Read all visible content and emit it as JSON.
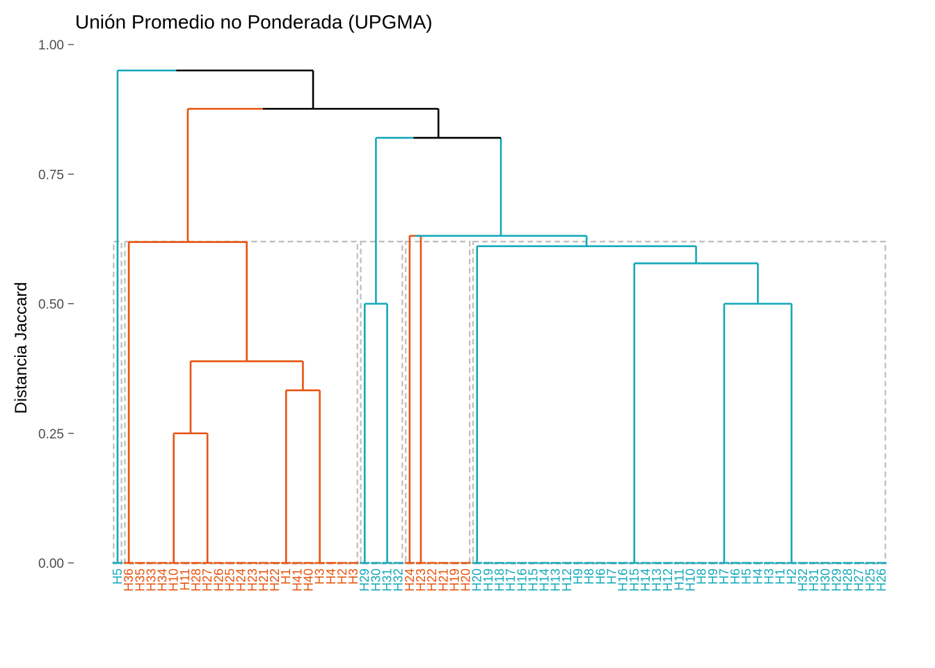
{
  "chart_data": {
    "type": "dendrogram",
    "title": "Unión Promedio no Ponderada (UPGMA)",
    "ylabel": "Distancia Jaccard",
    "ylim": [
      0,
      1
    ],
    "yticks": [
      "0.00",
      "0.25",
      "0.50",
      "0.75",
      "1.00"
    ],
    "colors": {
      "orange": "#e6530e",
      "teal": "#12a8b8",
      "black": "#000000",
      "box": "#bdbdbd"
    },
    "leaves": [
      {
        "label": "H5",
        "color": "teal"
      },
      {
        "label": "H36",
        "color": "orange"
      },
      {
        "label": "H35",
        "color": "orange"
      },
      {
        "label": "H33",
        "color": "orange"
      },
      {
        "label": "H34",
        "color": "orange"
      },
      {
        "label": "H10",
        "color": "orange"
      },
      {
        "label": "H11",
        "color": "orange"
      },
      {
        "label": "H28",
        "color": "orange"
      },
      {
        "label": "H27",
        "color": "orange"
      },
      {
        "label": "H26",
        "color": "orange"
      },
      {
        "label": "H25",
        "color": "orange"
      },
      {
        "label": "H24",
        "color": "orange"
      },
      {
        "label": "H23",
        "color": "orange"
      },
      {
        "label": "H21",
        "color": "orange"
      },
      {
        "label": "H22",
        "color": "orange"
      },
      {
        "label": "H1",
        "color": "orange"
      },
      {
        "label": "H41",
        "color": "orange"
      },
      {
        "label": "H40",
        "color": "orange"
      },
      {
        "label": "H3",
        "color": "orange"
      },
      {
        "label": "H4",
        "color": "orange"
      },
      {
        "label": "H2",
        "color": "orange"
      },
      {
        "label": "H3",
        "color": "orange"
      },
      {
        "label": "H29",
        "color": "teal"
      },
      {
        "label": "H30",
        "color": "teal"
      },
      {
        "label": "H31",
        "color": "teal"
      },
      {
        "label": "H32",
        "color": "teal"
      },
      {
        "label": "H24",
        "color": "orange"
      },
      {
        "label": "H23",
        "color": "orange"
      },
      {
        "label": "H22",
        "color": "orange"
      },
      {
        "label": "H21",
        "color": "orange"
      },
      {
        "label": "H19",
        "color": "orange"
      },
      {
        "label": "H20",
        "color": "orange"
      },
      {
        "label": "H20",
        "color": "teal"
      },
      {
        "label": "H19",
        "color": "teal"
      },
      {
        "label": "H18",
        "color": "teal"
      },
      {
        "label": "H17",
        "color": "teal"
      },
      {
        "label": "H16",
        "color": "teal"
      },
      {
        "label": "H15",
        "color": "teal"
      },
      {
        "label": "H14",
        "color": "teal"
      },
      {
        "label": "H13",
        "color": "teal"
      },
      {
        "label": "H12",
        "color": "teal"
      },
      {
        "label": "H9",
        "color": "teal"
      },
      {
        "label": "H8",
        "color": "teal"
      },
      {
        "label": "H6",
        "color": "teal"
      },
      {
        "label": "H7",
        "color": "teal"
      },
      {
        "label": "H16",
        "color": "teal"
      },
      {
        "label": "H15",
        "color": "teal"
      },
      {
        "label": "H14",
        "color": "teal"
      },
      {
        "label": "H13",
        "color": "teal"
      },
      {
        "label": "H12",
        "color": "teal"
      },
      {
        "label": "H11",
        "color": "teal"
      },
      {
        "label": "H10",
        "color": "teal"
      },
      {
        "label": "H8",
        "color": "teal"
      },
      {
        "label": "H9",
        "color": "teal"
      },
      {
        "label": "H7",
        "color": "teal"
      },
      {
        "label": "H6",
        "color": "teal"
      },
      {
        "label": "H5",
        "color": "teal"
      },
      {
        "label": "H4",
        "color": "teal"
      },
      {
        "label": "H3",
        "color": "teal"
      },
      {
        "label": "H1",
        "color": "teal"
      },
      {
        "label": "H2",
        "color": "teal"
      },
      {
        "label": "H32",
        "color": "teal"
      },
      {
        "label": "H31",
        "color": "teal"
      },
      {
        "label": "H30",
        "color": "teal"
      },
      {
        "label": "H29",
        "color": "teal"
      },
      {
        "label": "H28",
        "color": "teal"
      },
      {
        "label": "H27",
        "color": "teal"
      },
      {
        "label": "H25",
        "color": "teal"
      },
      {
        "label": "H26",
        "color": "teal"
      }
    ],
    "merges": [
      {
        "left": "leaf:5",
        "right": "leaf:8",
        "height": 0.25,
        "color": "orange"
      },
      {
        "left": "leaf:15",
        "right": "leaf:18",
        "height": 0.333,
        "color": "orange"
      },
      {
        "left": "merge:0",
        "right": "merge:1",
        "height": 0.389,
        "color": "orange"
      },
      {
        "left": "leaf:1",
        "right": "merge:2",
        "height": 0.619,
        "color": "orange"
      },
      {
        "left": "leaf:22",
        "right": "leaf:24",
        "height": 0.5,
        "color": "teal"
      },
      {
        "left": "leaf:26",
        "right": "leaf:27",
        "height": 0.631,
        "color": "orange"
      },
      {
        "left": "leaf:54",
        "right": "leaf:60",
        "height": 0.5,
        "color": "teal"
      },
      {
        "left": "leaf:46",
        "right": "merge:6",
        "height": 0.578,
        "color": "teal"
      },
      {
        "left": "leaf:32",
        "right": "merge:7",
        "height": 0.611,
        "color": "teal"
      },
      {
        "left": "merge:5",
        "right": "merge:8",
        "height": 0.631,
        "color": "teal"
      },
      {
        "left": "merge:4",
        "right": "merge:9",
        "height": 0.82,
        "color": "black",
        "left_color": "teal"
      },
      {
        "left": "merge:3",
        "right": "merge:10",
        "height": 0.876,
        "color": "black",
        "left_color": "orange"
      },
      {
        "left": "leaf:0",
        "right": "merge:11",
        "height": 0.95,
        "color": "black",
        "left_color": "teal"
      }
    ],
    "cluster_boxes": [
      {
        "from": 0,
        "to": 0
      },
      {
        "from": 1,
        "to": 21
      },
      {
        "from": 22,
        "to": 25
      },
      {
        "from": 26,
        "to": 31
      },
      {
        "from": 32,
        "to": 68
      }
    ]
  }
}
